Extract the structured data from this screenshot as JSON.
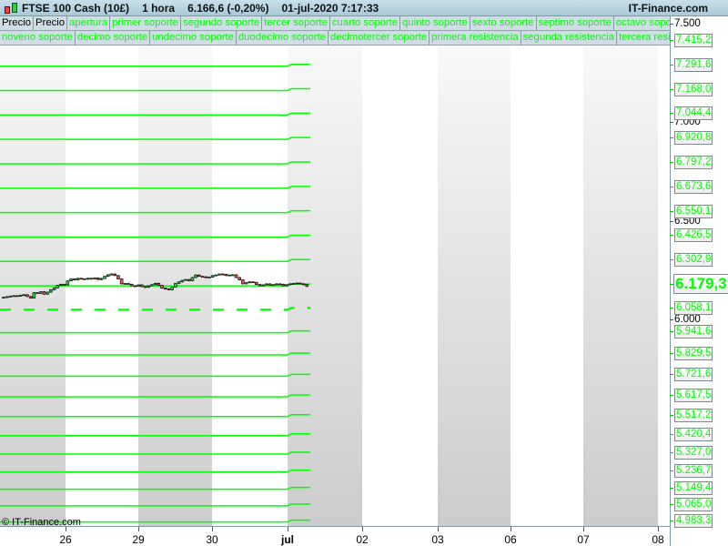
{
  "title": {
    "instrument": "FTSE 100 Cash (10£)",
    "timeframe": "1 hora",
    "price_change": "6.166,6 (-0,20%)",
    "datetime": "01-jul-2020 7:17:33",
    "brand": "IT-Finance.com"
  },
  "legend": {
    "row1": [
      "Precio",
      "Precio",
      "apertura",
      "primer soporte",
      "segundo soporte",
      "tercer soporte",
      "cuarto soporte",
      "quinto soporte",
      "sexto soporte",
      "septimo soporte",
      "octavo soporte"
    ],
    "row2": [
      "noveno soporte",
      "decimo soporte",
      "undecimo soporte",
      "duodecimo soporte",
      "decimotercer soporte",
      "primera resistencia",
      "segunda resistencia",
      "tercera resisten"
    ]
  },
  "y_axis": {
    "ticks": [
      "7.500",
      "7.000",
      "6.500",
      "6.000"
    ],
    "tick_values": [
      7500,
      7000,
      6500,
      6000
    ]
  },
  "levels": {
    "labels": [
      "7.415,2",
      "7.291,6",
      "7.168,0",
      "7.044,4",
      "6.920,8",
      "6.797,2",
      "6.673,6",
      "6.550,1",
      "6.426,5",
      "6.302,9",
      "6.179,3",
      "6.058,1",
      "5.941,6",
      "5.829,5",
      "5.721,6",
      "5.617,5",
      "5.517,2",
      "5.420,4",
      "5.327,0",
      "5.236,7",
      "5.149,4",
      "5.065,0",
      "4.983,3"
    ],
    "values": [
      7415.2,
      7291.6,
      7168.0,
      7044.4,
      6920.8,
      6797.2,
      6673.6,
      6550.1,
      6426.5,
      6302.9,
      6179.3,
      6058.1,
      5941.6,
      5829.5,
      5721.6,
      5617.5,
      5517.2,
      5420.4,
      5327.0,
      5236.7,
      5149.4,
      5065.0,
      4983.3
    ],
    "current_price_label": "6.179,3",
    "dashed_level": 6058.1
  },
  "x_axis": {
    "labels": [
      "26",
      "29",
      "30",
      "jul",
      "02",
      "03",
      "06",
      "07",
      "08"
    ],
    "bold": "jul"
  },
  "prices": {
    "closes": [
      6112,
      6115,
      6118,
      6120,
      6118,
      6122,
      6125,
      6116,
      6108,
      6135,
      6132,
      6140,
      6128,
      6138,
      6150,
      6160,
      6172,
      6178,
      6175,
      6195,
      6205,
      6200,
      6208,
      6206,
      6204,
      6208,
      6205,
      6210,
      6202,
      6207,
      6218,
      6226,
      6230,
      6222,
      6205,
      6180,
      6182,
      6178,
      6170,
      6168,
      6175,
      6166,
      6163,
      6170,
      6176,
      6183,
      6172,
      6158,
      6154,
      6150,
      6164,
      6182,
      6190,
      6198,
      6202,
      6196,
      6212,
      6225,
      6218,
      6216,
      6212,
      6214,
      6222,
      6225,
      6230,
      6228,
      6222,
      6225,
      6226,
      6212,
      6200,
      6180,
      6186,
      6190,
      6188,
      6177,
      6170,
      6175,
      6180,
      6174,
      6176,
      6180,
      6178,
      6170,
      6176,
      6180,
      6182,
      6184,
      6180,
      6176,
      6167
    ]
  },
  "colors": {
    "level": "#00ff00",
    "up": "#22cc44",
    "down": "#e05555",
    "band": "#d8d8d8"
  },
  "copyright": "© IT-Finance.com"
}
